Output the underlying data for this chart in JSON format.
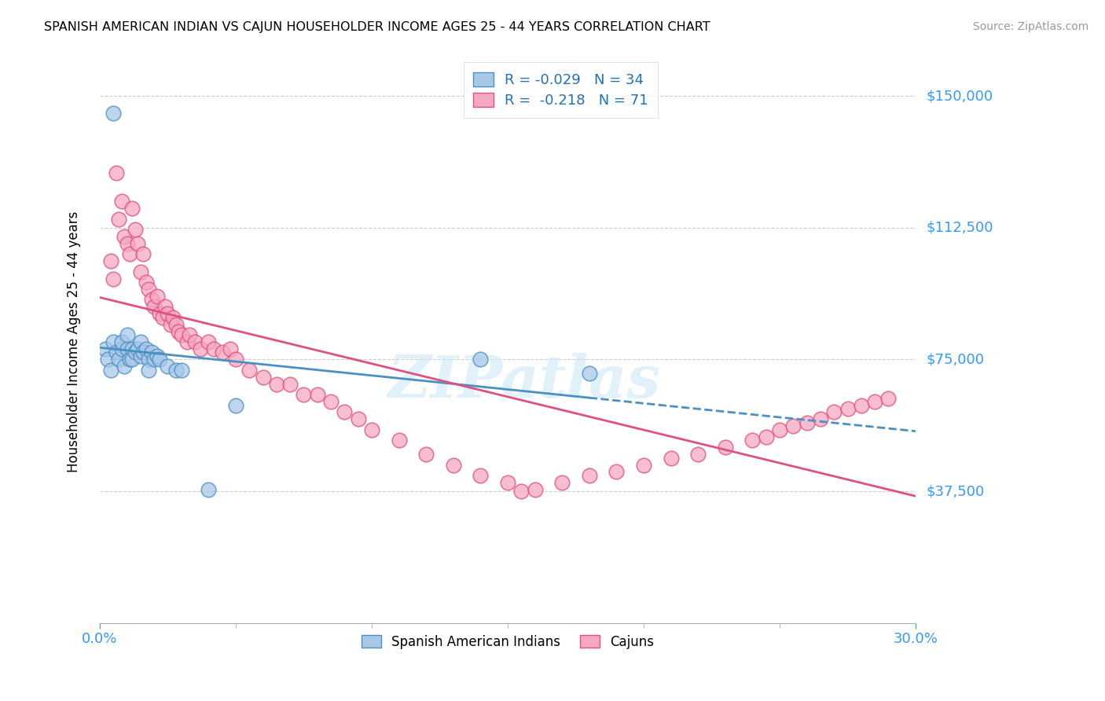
{
  "title": "SPANISH AMERICAN INDIAN VS CAJUN HOUSEHOLDER INCOME AGES 25 - 44 YEARS CORRELATION CHART",
  "source": "Source: ZipAtlas.com",
  "ylabel": "Householder Income Ages 25 - 44 years",
  "ytick_labels": [
    "$150,000",
    "$112,500",
    "$75,000",
    "$37,500"
  ],
  "ytick_values": [
    150000,
    112500,
    75000,
    37500
  ],
  "ylim": [
    0,
    160000
  ],
  "xlim": [
    0.0,
    0.3
  ],
  "xtick_labels": [
    "0.0%",
    "30.0%"
  ],
  "xtick_values": [
    0.0,
    0.3
  ],
  "legend_r1": "R = -0.029",
  "legend_n1": "N = 34",
  "legend_r2": "R = -0.218",
  "legend_n2": "N = 71",
  "color_blue_fill": "#a8c8e8",
  "color_blue_edge": "#4a90c4",
  "color_blue_line": "#4a90c4",
  "color_pink_fill": "#f4a8c0",
  "color_pink_edge": "#e05080",
  "color_pink_line": "#e05080",
  "color_blue_text": "#2171b5",
  "color_axis_label": "#3399ff",
  "watermark": "ZIPatlas",
  "blue_x": [
    0.002,
    0.003,
    0.004,
    0.005,
    0.005,
    0.006,
    0.007,
    0.008,
    0.008,
    0.009,
    0.01,
    0.01,
    0.011,
    0.012,
    0.012,
    0.013,
    0.014,
    0.015,
    0.015,
    0.016,
    0.017,
    0.018,
    0.018,
    0.019,
    0.02,
    0.021,
    0.022,
    0.025,
    0.028,
    0.03,
    0.04,
    0.05,
    0.14,
    0.18
  ],
  "blue_y": [
    78000,
    75000,
    72000,
    80000,
    145000,
    77000,
    75000,
    78000,
    80000,
    73000,
    78000,
    82000,
    75000,
    78000,
    75000,
    77000,
    78000,
    80000,
    76000,
    77000,
    78000,
    75000,
    72000,
    77000,
    75000,
    76000,
    75000,
    73000,
    72000,
    72000,
    38000,
    62000,
    75000,
    71000
  ],
  "pink_x": [
    0.004,
    0.005,
    0.006,
    0.007,
    0.008,
    0.009,
    0.01,
    0.011,
    0.012,
    0.013,
    0.014,
    0.015,
    0.016,
    0.017,
    0.018,
    0.019,
    0.02,
    0.021,
    0.022,
    0.023,
    0.024,
    0.025,
    0.026,
    0.027,
    0.028,
    0.029,
    0.03,
    0.032,
    0.033,
    0.035,
    0.037,
    0.04,
    0.042,
    0.045,
    0.048,
    0.05,
    0.055,
    0.06,
    0.065,
    0.07,
    0.075,
    0.08,
    0.085,
    0.09,
    0.095,
    0.1,
    0.11,
    0.12,
    0.13,
    0.14,
    0.15,
    0.155,
    0.16,
    0.17,
    0.18,
    0.19,
    0.2,
    0.21,
    0.22,
    0.23,
    0.24,
    0.245,
    0.25,
    0.255,
    0.26,
    0.265,
    0.27,
    0.275,
    0.28,
    0.285,
    0.29
  ],
  "pink_y": [
    103000,
    98000,
    128000,
    115000,
    120000,
    110000,
    108000,
    105000,
    118000,
    112000,
    108000,
    100000,
    105000,
    97000,
    95000,
    92000,
    90000,
    93000,
    88000,
    87000,
    90000,
    88000,
    85000,
    87000,
    85000,
    83000,
    82000,
    80000,
    82000,
    80000,
    78000,
    80000,
    78000,
    77000,
    78000,
    75000,
    72000,
    70000,
    68000,
    68000,
    65000,
    65000,
    63000,
    60000,
    58000,
    55000,
    52000,
    48000,
    45000,
    42000,
    40000,
    37500,
    38000,
    40000,
    42000,
    43000,
    45000,
    47000,
    48000,
    50000,
    52000,
    53000,
    55000,
    56000,
    57000,
    58000,
    60000,
    61000,
    62000,
    63000,
    64000
  ]
}
